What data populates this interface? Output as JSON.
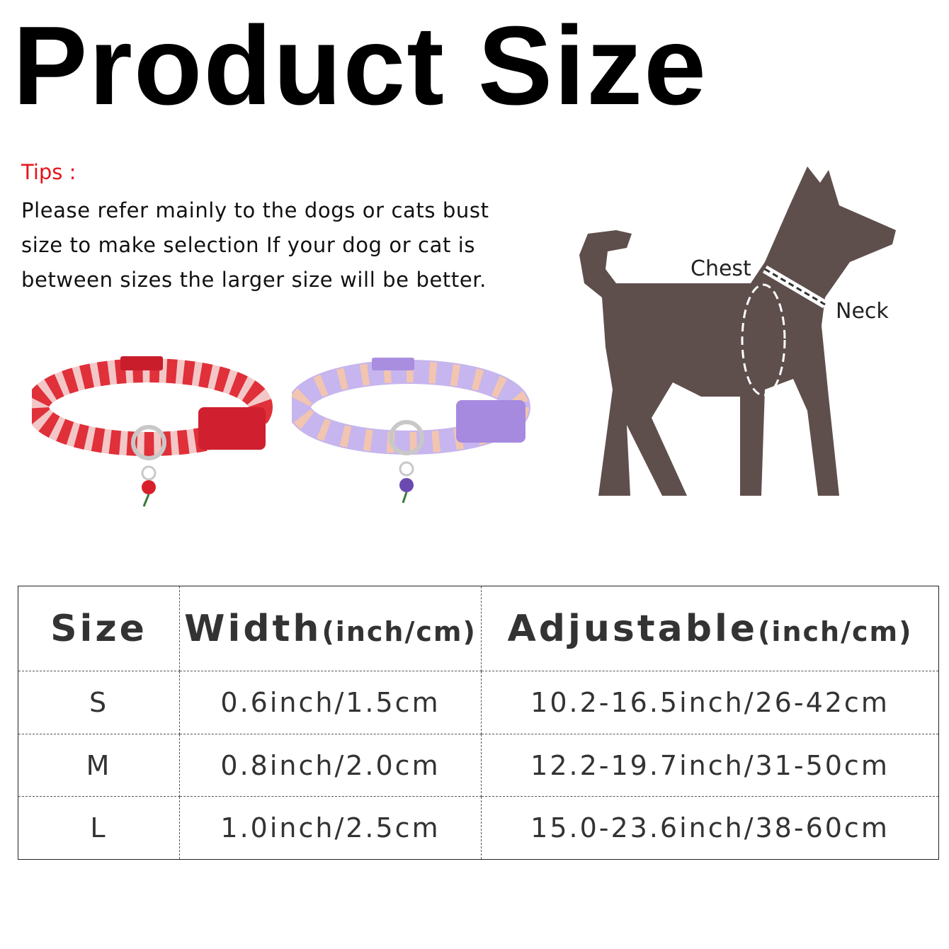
{
  "title": "Product Size",
  "tips": {
    "label": "Tips :",
    "text": "Please refer mainly to the dogs or cats bust size to make selection If your dog or cat is between sizes the larger size will be better."
  },
  "diagram": {
    "chest_label": "Chest",
    "neck_label": "Neck",
    "dog_color": "#5e4f4d"
  },
  "collars": [
    {
      "name": "red-rose-collar",
      "color": "#e0303a"
    },
    {
      "name": "purple-floral-collar",
      "color": "#b9a3e6"
    }
  ],
  "table": {
    "headers": [
      {
        "label": "Size",
        "unit": ""
      },
      {
        "label": "Width",
        "unit": "(inch/cm)"
      },
      {
        "label": "Adjustable",
        "unit": "(inch/cm)"
      }
    ],
    "rows": [
      {
        "size": "S",
        "width": "0.6inch/1.5cm",
        "adjustable": "10.2-16.5inch/26-42cm"
      },
      {
        "size": "M",
        "width": "0.8inch/2.0cm",
        "adjustable": "12.2-19.7inch/31-50cm"
      },
      {
        "size": "L",
        "width": "1.0inch/2.5cm",
        "adjustable": "15.0-23.6inch/38-60cm"
      }
    ]
  }
}
